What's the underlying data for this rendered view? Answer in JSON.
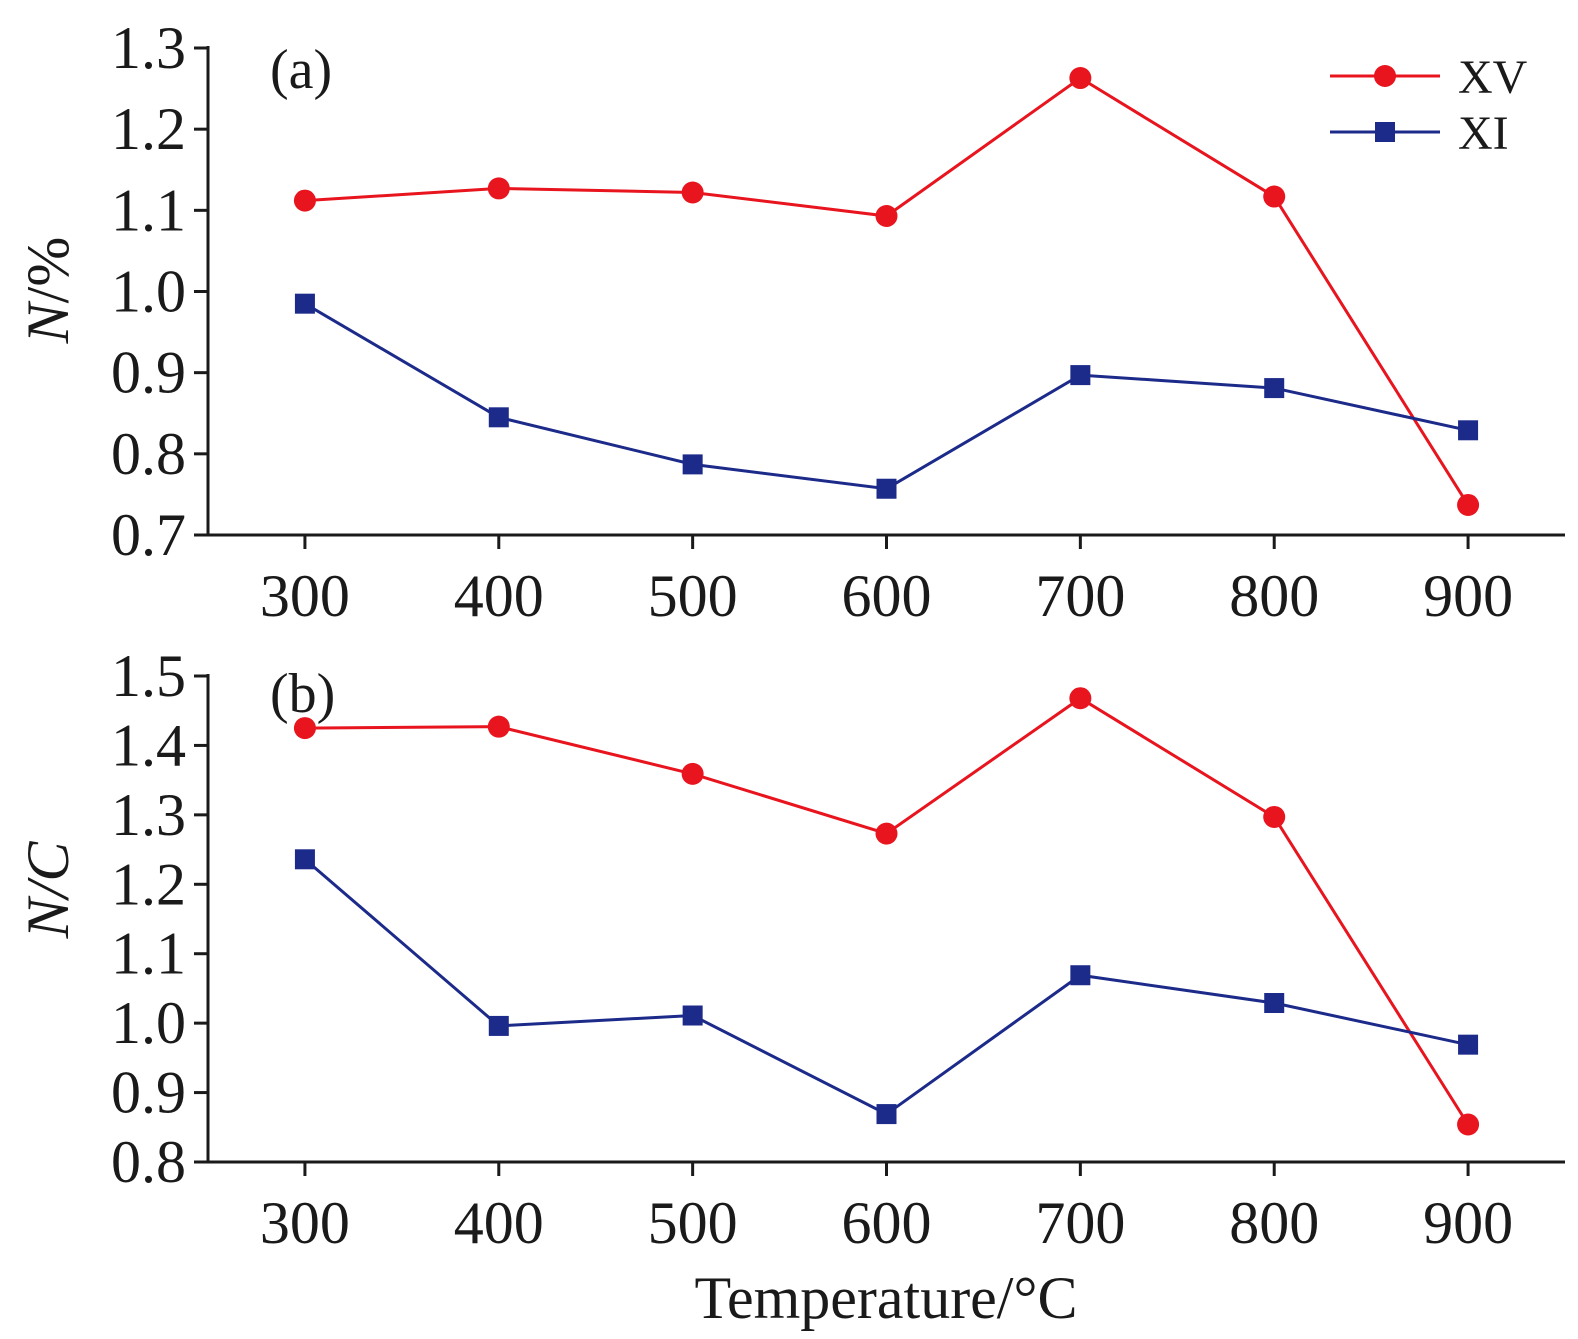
{
  "colors": {
    "XV": "#e8141e",
    "XI": "#1c2a8a",
    "axis": "#1a1a1a"
  },
  "legend": {
    "position": "top-right",
    "items": [
      {
        "label": "XV",
        "marker": "circle"
      },
      {
        "label": "XI",
        "marker": "square"
      }
    ]
  },
  "xlabel": "Temperature/°C",
  "chart_data": [
    {
      "type": "line",
      "panel_label": "(a)",
      "ylabel": "N/%",
      "ylabel_italic_part": "N",
      "ylabel_rest": "/%",
      "x": [
        300,
        400,
        500,
        600,
        700,
        800,
        900
      ],
      "xticks": [
        "300",
        "400",
        "500",
        "600",
        "700",
        "800",
        "900"
      ],
      "xlim": [
        250,
        950
      ],
      "ylim": [
        0.7,
        1.3
      ],
      "yticks": [
        "0.7",
        "0.8",
        "0.9",
        "1.0",
        "1.1",
        "1.2",
        "1.3"
      ],
      "ytick_values": [
        0.7,
        0.8,
        0.9,
        1.0,
        1.1,
        1.2,
        1.3
      ],
      "series": [
        {
          "name": "XV",
          "marker": "circle",
          "values": [
            1.112,
            1.127,
            1.122,
            1.093,
            1.263,
            1.117,
            0.737
          ]
        },
        {
          "name": "XI",
          "marker": "square",
          "values": [
            0.985,
            0.845,
            0.787,
            0.757,
            0.897,
            0.881,
            0.829
          ]
        }
      ]
    },
    {
      "type": "line",
      "panel_label": "(b)",
      "ylabel": "N/C",
      "ylabel_italic_part": "N/C",
      "ylabel_rest": "",
      "x": [
        300,
        400,
        500,
        600,
        700,
        800,
        900
      ],
      "xticks": [
        "300",
        "400",
        "500",
        "600",
        "700",
        "800",
        "900"
      ],
      "xlim": [
        250,
        950
      ],
      "ylim": [
        0.8,
        1.5
      ],
      "yticks": [
        "0.8",
        "0.9",
        "1.0",
        "1.1",
        "1.2",
        "1.3",
        "1.4",
        "1.5"
      ],
      "ytick_values": [
        0.8,
        0.9,
        1.0,
        1.1,
        1.2,
        1.3,
        1.4,
        1.5
      ],
      "series": [
        {
          "name": "XV",
          "marker": "circle",
          "values": [
            1.425,
            1.427,
            1.359,
            1.273,
            1.468,
            1.297,
            0.854
          ]
        },
        {
          "name": "XI",
          "marker": "square",
          "values": [
            1.236,
            0.996,
            1.011,
            0.869,
            1.069,
            1.029,
            0.969
          ]
        }
      ]
    }
  ]
}
